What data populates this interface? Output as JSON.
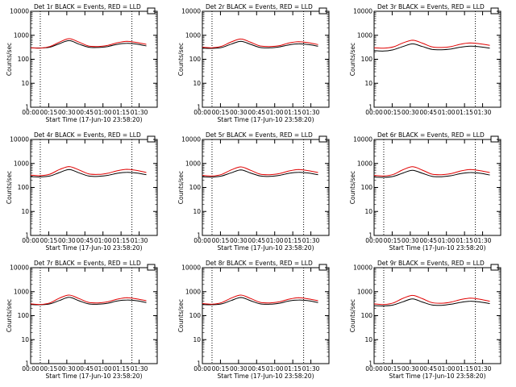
{
  "figure": {
    "background": "#ffffff",
    "axis_color": "#000000",
    "events_color": "#000000",
    "lld_color": "#e00000"
  },
  "chart_data": [
    {
      "type": "line",
      "title": "Det 1r BLACK = Events, RED = LLD",
      "xlabel": "Start Time (17-Jun-10 23:58:20)",
      "ylabel": "Counts/sec",
      "xticks": [
        "00:00",
        "00:15",
        "00:30",
        "00:45",
        "01:00",
        "01:15",
        "01:30"
      ],
      "yticks": [
        "1",
        "10",
        "100",
        "1000",
        "10000"
      ],
      "y_scale": "log",
      "ylim": [
        1,
        10000
      ],
      "x": [
        0,
        8,
        16,
        24,
        32,
        40,
        48,
        56,
        64,
        72,
        80,
        88,
        96
      ],
      "series": [
        {
          "name": "Events",
          "values": [
            300,
            295,
            320,
            450,
            600,
            430,
            320,
            310,
            340,
            420,
            460,
            430,
            360
          ]
        },
        {
          "name": "LLD",
          "values": [
            300,
            290,
            340,
            520,
            720,
            520,
            360,
            340,
            380,
            490,
            560,
            500,
            420
          ]
        }
      ],
      "vlines": [
        8,
        84
      ]
    },
    {
      "type": "line",
      "title": "Det 2r BLACK = Events, RED = LLD",
      "xlabel": "Start Time (17-Jun-10 23:58:20)",
      "ylabel": "Counts/sec",
      "xticks": [
        "00:00",
        "00:15",
        "00:30",
        "00:45",
        "01:00",
        "01:15",
        "01:30"
      ],
      "yticks": [
        "1",
        "10",
        "100",
        "1000",
        "10000"
      ],
      "y_scale": "log",
      "ylim": [
        1,
        10000
      ],
      "x": [
        0,
        8,
        16,
        24,
        32,
        40,
        48,
        56,
        64,
        72,
        80,
        88,
        96
      ],
      "series": [
        {
          "name": "Events",
          "values": [
            290,
            285,
            310,
            430,
            560,
            420,
            310,
            300,
            330,
            400,
            440,
            410,
            350
          ]
        },
        {
          "name": "LLD",
          "values": [
            320,
            300,
            350,
            530,
            700,
            510,
            360,
            340,
            370,
            480,
            540,
            490,
            410
          ]
        }
      ],
      "vlines": [
        8,
        84
      ]
    },
    {
      "type": "line",
      "title": "Det 3r BLACK = Events, RED = LLD",
      "xlabel": "",
      "ylabel": "Counts/sec",
      "xticks": [
        "00:00",
        "00:15",
        "00:30",
        "00:45",
        "01:00",
        "01:15",
        "01:30"
      ],
      "yticks": [
        "1",
        "10",
        "100",
        "1000",
        "10000"
      ],
      "y_scale": "log",
      "ylim": [
        1,
        10000
      ],
      "x": [
        0,
        8,
        16,
        24,
        32,
        40,
        48,
        56,
        64,
        72,
        80,
        88,
        96
      ],
      "series": [
        {
          "name": "Events",
          "values": [
            230,
            220,
            250,
            340,
            440,
            340,
            260,
            250,
            270,
            320,
            350,
            330,
            290
          ]
        },
        {
          "name": "LLD",
          "values": [
            300,
            290,
            330,
            480,
            620,
            470,
            330,
            310,
            340,
            430,
            480,
            440,
            380
          ]
        }
      ],
      "vlines": [
        84
      ]
    },
    {
      "type": "line",
      "title": "Det 4r BLACK = Events, RED = LLD",
      "xlabel": "Start Time (17-Jun-10 23:58:20)",
      "ylabel": "Counts/sec",
      "xticks": [
        "00:00",
        "00:15",
        "00:30",
        "00:45",
        "01:00",
        "01:15",
        "01:30"
      ],
      "yticks": [
        "1",
        "10",
        "100",
        "1000",
        "10000"
      ],
      "y_scale": "log",
      "ylim": [
        1,
        10000
      ],
      "x": [
        0,
        8,
        16,
        24,
        32,
        40,
        48,
        56,
        64,
        72,
        80,
        88,
        96
      ],
      "series": [
        {
          "name": "Events",
          "values": [
            280,
            275,
            300,
            420,
            560,
            410,
            300,
            290,
            320,
            390,
            430,
            400,
            340
          ]
        },
        {
          "name": "LLD",
          "values": [
            330,
            310,
            360,
            560,
            740,
            540,
            370,
            350,
            390,
            500,
            570,
            510,
            420
          ]
        }
      ],
      "vlines": [
        8,
        84
      ]
    },
    {
      "type": "line",
      "title": "Det 5r BLACK = Events, RED = LLD",
      "xlabel": "Start Time (17-Jun-10 23:58:20)",
      "ylabel": "Counts/sec",
      "xticks": [
        "00:00",
        "00:15",
        "00:30",
        "00:45",
        "01:00",
        "01:15",
        "01:30"
      ],
      "yticks": [
        "1",
        "10",
        "100",
        "1000",
        "10000"
      ],
      "y_scale": "log",
      "ylim": [
        1,
        10000
      ],
      "x": [
        0,
        8,
        16,
        24,
        32,
        40,
        48,
        56,
        64,
        72,
        80,
        88,
        96
      ],
      "series": [
        {
          "name": "Events",
          "values": [
            280,
            270,
            300,
            410,
            540,
            400,
            300,
            290,
            320,
            390,
            430,
            400,
            340
          ]
        },
        {
          "name": "LLD",
          "values": [
            320,
            300,
            350,
            540,
            720,
            520,
            360,
            340,
            380,
            490,
            560,
            500,
            420
          ]
        }
      ],
      "vlines": [
        8,
        84
      ]
    },
    {
      "type": "line",
      "title": "Det 6r BLACK = Events, RED = LLD",
      "xlabel": "Start Time (17-Jun-10 23:58:20)",
      "ylabel": "Counts/sec",
      "xticks": [
        "00:00",
        "00:15",
        "00:30",
        "00:45",
        "01:00",
        "01:15",
        "01:30"
      ],
      "yticks": [
        "1",
        "10",
        "100",
        "1000",
        "10000"
      ],
      "y_scale": "log",
      "ylim": [
        1,
        10000
      ],
      "x": [
        0,
        8,
        16,
        24,
        32,
        40,
        48,
        56,
        64,
        72,
        80,
        88,
        96
      ],
      "series": [
        {
          "name": "Events",
          "values": [
            270,
            265,
            290,
            400,
            520,
            390,
            290,
            280,
            310,
            380,
            420,
            390,
            330
          ]
        },
        {
          "name": "LLD",
          "values": [
            320,
            300,
            350,
            550,
            730,
            530,
            360,
            340,
            380,
            490,
            560,
            500,
            420
          ]
        }
      ],
      "vlines": [
        8,
        84
      ]
    },
    {
      "type": "line",
      "title": "Det 7r BLACK = Events, RED = LLD",
      "xlabel": "Start Time (17-Jun-10 23:58:20)",
      "ylabel": "Counts/sec",
      "xticks": [
        "00:00",
        "00:15",
        "00:30",
        "00:45",
        "01:00",
        "01:15",
        "01:30"
      ],
      "yticks": [
        "1",
        "10",
        "100",
        "1000",
        "10000"
      ],
      "y_scale": "log",
      "ylim": [
        1,
        10000
      ],
      "x": [
        0,
        8,
        16,
        24,
        32,
        40,
        48,
        56,
        64,
        72,
        80,
        88,
        96
      ],
      "series": [
        {
          "name": "Events",
          "values": [
            290,
            285,
            310,
            430,
            580,
            420,
            310,
            300,
            330,
            410,
            450,
            420,
            350
          ]
        },
        {
          "name": "LLD",
          "values": [
            310,
            290,
            340,
            540,
            720,
            520,
            360,
            340,
            380,
            490,
            560,
            500,
            420
          ]
        }
      ],
      "vlines": [
        8,
        84
      ]
    },
    {
      "type": "line",
      "title": "Det 8r BLACK = Events, RED = LLD",
      "xlabel": "Start Time (17-Jun-10 23:58:20)",
      "ylabel": "Counts/sec",
      "xticks": [
        "00:00",
        "00:15",
        "00:30",
        "00:45",
        "01:00",
        "01:15",
        "01:30"
      ],
      "yticks": [
        "1",
        "10",
        "100",
        "1000",
        "10000"
      ],
      "y_scale": "log",
      "ylim": [
        1,
        10000
      ],
      "x": [
        0,
        8,
        16,
        24,
        32,
        40,
        48,
        56,
        64,
        72,
        80,
        88,
        96
      ],
      "series": [
        {
          "name": "Events",
          "values": [
            290,
            285,
            310,
            430,
            570,
            420,
            310,
            300,
            330,
            410,
            450,
            420,
            350
          ]
        },
        {
          "name": "LLD",
          "values": [
            320,
            300,
            350,
            540,
            720,
            520,
            360,
            340,
            380,
            490,
            560,
            500,
            420
          ]
        }
      ],
      "vlines": [
        8,
        84
      ]
    },
    {
      "type": "line",
      "title": "Det 9r BLACK = Events, RED = LLD",
      "xlabel": "Start Time (17-Jun-10 23:58:20)",
      "ylabel": "Counts/sec",
      "xticks": [
        "00:00",
        "00:15",
        "00:30",
        "00:45",
        "01:00",
        "01:15",
        "01:30"
      ],
      "yticks": [
        "1",
        "10",
        "100",
        "1000",
        "10000"
      ],
      "y_scale": "log",
      "ylim": [
        1,
        10000
      ],
      "x": [
        0,
        8,
        16,
        24,
        32,
        40,
        48,
        56,
        64,
        72,
        80,
        88,
        96
      ],
      "series": [
        {
          "name": "Events",
          "values": [
            260,
            255,
            280,
            380,
            500,
            370,
            280,
            270,
            300,
            360,
            400,
            370,
            320
          ]
        },
        {
          "name": "LLD",
          "values": [
            310,
            290,
            340,
            530,
            700,
            510,
            350,
            330,
            370,
            470,
            540,
            480,
            400
          ]
        }
      ],
      "vlines": [
        8,
        84
      ]
    }
  ]
}
